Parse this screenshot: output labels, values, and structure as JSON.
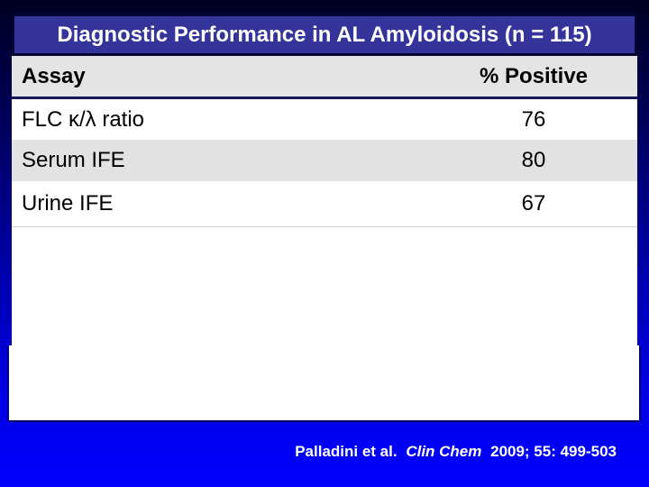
{
  "slide": {
    "title": "Diagnostic Performance in AL Amyloidosis (n = 115)",
    "table": {
      "columns": [
        "Assay",
        "% Positive"
      ],
      "rows": [
        {
          "assay": "FLC κ/λ ratio",
          "value": "76"
        },
        {
          "assay": "Serum IFE",
          "value": "80"
        },
        {
          "assay": "Urine IFE",
          "value": "67"
        }
      ]
    },
    "citation": {
      "authors": "Palladini et al.",
      "journal": "Clin Chem",
      "reference": "2009; 55: 499-503"
    },
    "colors": {
      "title_bar_fill": "#34349b",
      "title_bar_border": "#050534",
      "header_row_gray": "#e4e4e4",
      "alt_row_gray": "#e2e2e2",
      "background_top": "#000022",
      "background_bottom": "#0000ff",
      "text_white": "#ffffff",
      "text_black": "#000000"
    }
  }
}
